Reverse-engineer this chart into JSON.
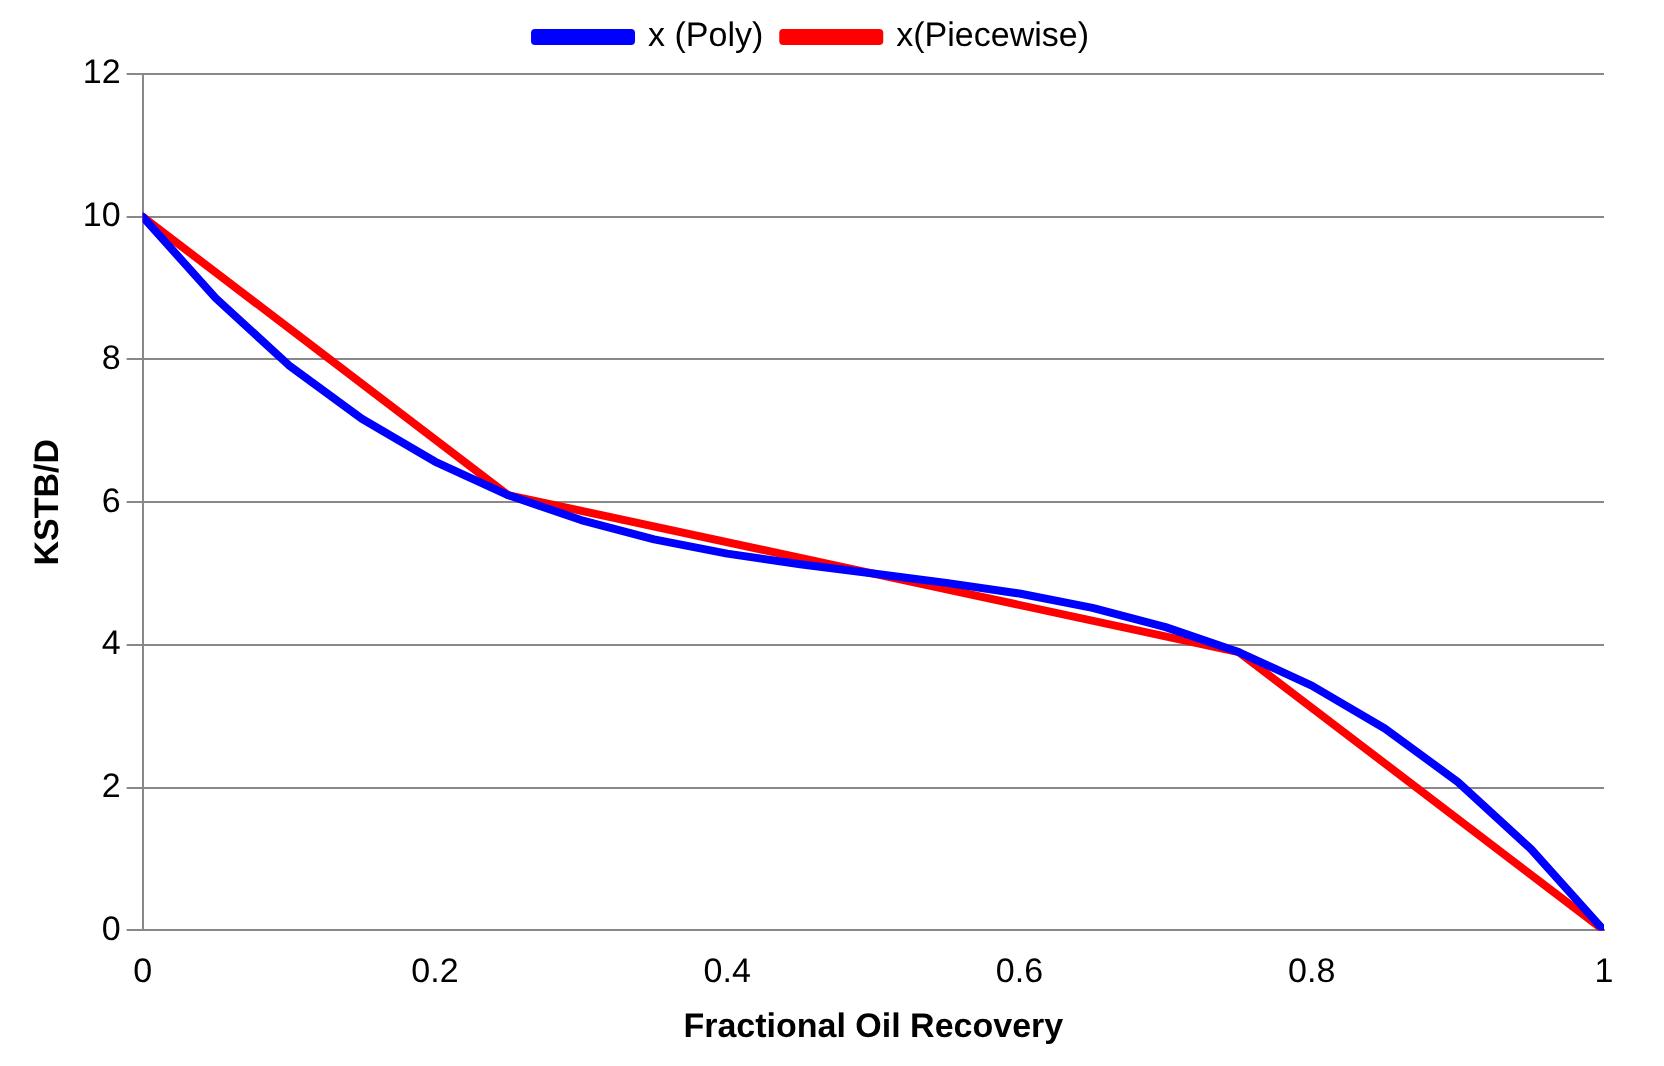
{
  "chart_data": {
    "type": "line",
    "xlabel": "Fractional Oil Recovery",
    "ylabel": "KSTB/D",
    "xlim": [
      0,
      1
    ],
    "xticks": [
      0,
      0.2,
      0.4,
      0.6,
      0.8,
      1
    ],
    "ylim": [
      0,
      12
    ],
    "yticks": [
      0,
      2,
      4,
      6,
      8,
      10,
      12
    ],
    "grid": "y",
    "legend": "top",
    "marker": "none",
    "line_style": "solid",
    "series": [
      {
        "name": "x (Poly)",
        "color": "#0000ff",
        "x": [
          0,
          0.05,
          0.1,
          0.15,
          0.2,
          0.25,
          0.3,
          0.35,
          0.4,
          0.45,
          0.5,
          0.55,
          0.6,
          0.65,
          0.7,
          0.75,
          0.8,
          0.85,
          0.9,
          0.95,
          1
        ],
        "values": [
          10,
          8.86,
          7.92,
          7.17,
          6.57,
          6.1,
          5.75,
          5.48,
          5.28,
          5.13,
          5,
          4.87,
          4.72,
          4.52,
          4.25,
          3.9,
          3.43,
          2.83,
          2.08,
          1.14,
          0
        ]
      },
      {
        "name": "x(Piecewise)",
        "color": "#ff0000",
        "x": [
          0,
          0.25,
          0.5,
          0.75,
          1
        ],
        "values": [
          10,
          6.1,
          5,
          3.9,
          0
        ]
      }
    ]
  }
}
